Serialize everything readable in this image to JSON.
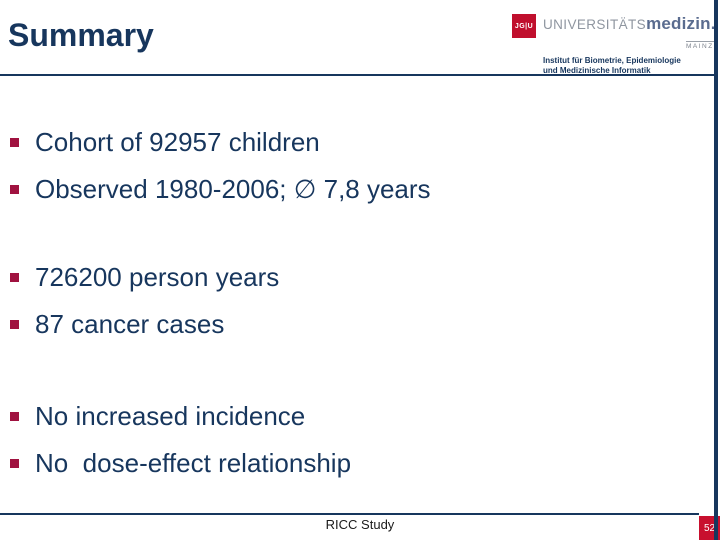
{
  "header": {
    "title": "Summary"
  },
  "logo": {
    "seal_text": "JG|U",
    "brand_light": "UNIVERSITÄTS",
    "brand_bold": "medizin.",
    "city": "MAINZ",
    "institute_line1": "Institut für Biometrie, Epidemiologie",
    "institute_line2": "und Medizinische Informatik"
  },
  "bullets": [
    {
      "text": "Cohort of 92957 children"
    },
    {
      "text": "Observed 1980-2006; ∅ 7,8 years"
    },
    {
      "text": "726200 person years"
    },
    {
      "text": "87 cancer cases"
    },
    {
      "text": "No increased incidence"
    },
    {
      "text": "No  dose-effect relationship"
    }
  ],
  "footer": {
    "label": "RICC Study",
    "page_number": "52"
  },
  "colors": {
    "text_navy": "#17365D",
    "bullet_red": "#A01240",
    "logo_red": "#C00F2D",
    "badge_red": "#C8102E"
  }
}
